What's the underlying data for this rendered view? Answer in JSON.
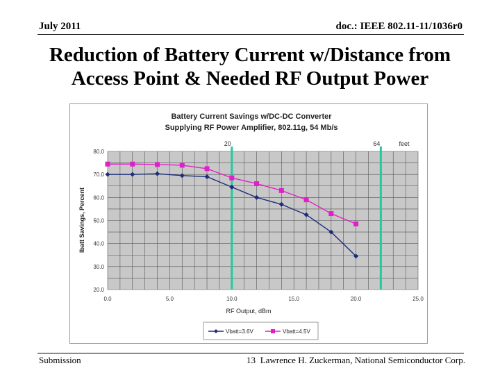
{
  "header": {
    "date": "July 2011",
    "doc": "doc.: IEEE 802.11-11/1036r0"
  },
  "slide": {
    "title_line1": "Reduction of Battery Current w/Distance from",
    "title_line2": "Access Point & Needed RF Output Power"
  },
  "footer": {
    "left": "Submission",
    "page": "13",
    "author": "Lawrence H. Zuckerman, National Semiconductor Corp."
  },
  "chart_data": {
    "type": "line",
    "title_line1": "Battery Current Savings w/DC-DC Converter",
    "title_line2": "Supplying RF Power Amplifier, 802.11g, 54 Mb/s",
    "xlabel": "RF Output, dBm",
    "ylabel": "Ibatt Savings, Percent",
    "xlim": [
      0,
      25
    ],
    "ylim": [
      20,
      80
    ],
    "x_ticks": [
      "0.0",
      "5.0",
      "10.0",
      "15.0",
      "20.0",
      "25.0"
    ],
    "y_ticks": [
      "20.0",
      "30.0",
      "40.0",
      "50.0",
      "60.0",
      "70.0",
      "80.0"
    ],
    "markers": [
      {
        "x": 10.0,
        "label": "20"
      },
      {
        "x": 22.0,
        "label": "64"
      }
    ],
    "marker_unit": "feet",
    "series": [
      {
        "name": "Vbatt=3.6V",
        "color": "#1c2c7a",
        "x": [
          0,
          2,
          4,
          6,
          8,
          10,
          12,
          14,
          16,
          18,
          20
        ],
        "values": [
          70.0,
          70.0,
          70.3,
          69.5,
          69.0,
          64.5,
          60.0,
          57.0,
          52.5,
          45.0,
          34.5
        ]
      },
      {
        "name": "Vbatt=4.5V",
        "color": "#e020c8",
        "x": [
          0,
          2,
          4,
          6,
          8,
          10,
          12,
          14,
          16,
          18,
          20
        ],
        "values": [
          74.5,
          74.5,
          74.3,
          74.0,
          72.5,
          68.5,
          66.0,
          63.0,
          59.0,
          53.0,
          48.5
        ]
      }
    ]
  }
}
